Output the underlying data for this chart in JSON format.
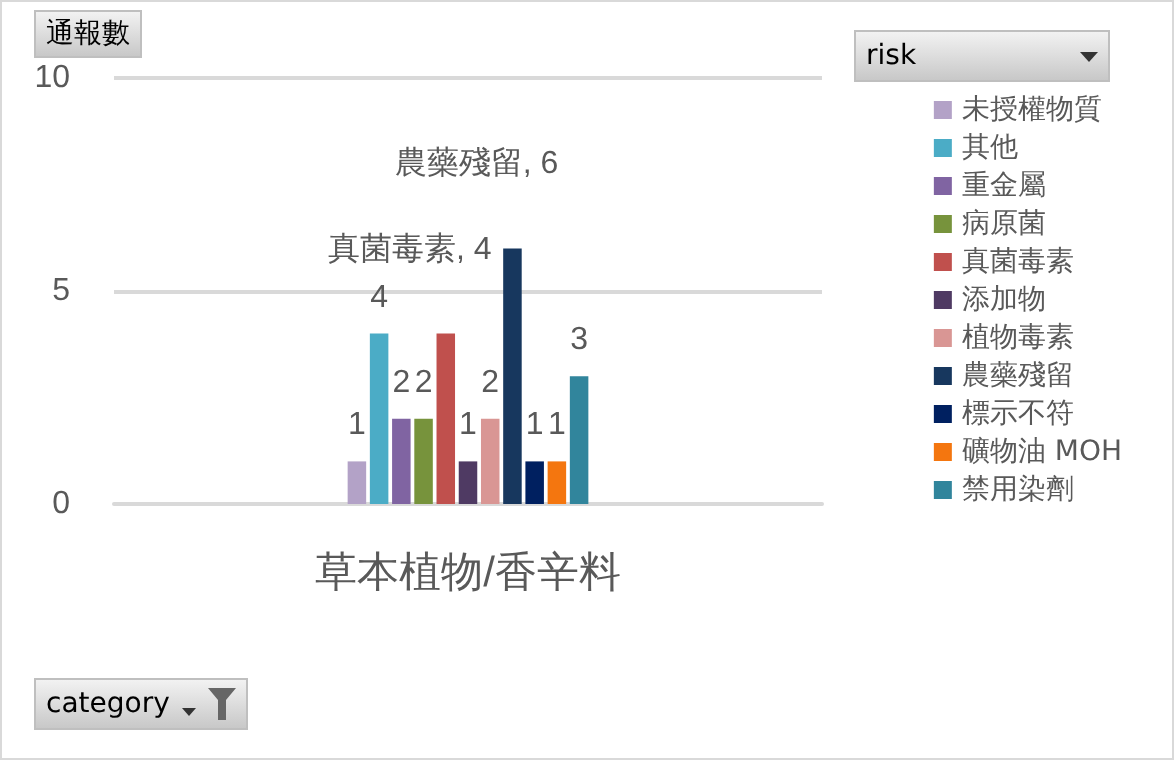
{
  "chart_data": {
    "type": "bar",
    "categories": [
      "草本植物/香辛料"
    ],
    "ylabel": "通報數",
    "legend_title": "risk",
    "xlabel": "category",
    "ylim": [
      0,
      10
    ],
    "yticks": [
      0,
      5,
      10
    ],
    "grid": "y",
    "legend": "right",
    "series": [
      {
        "name": "未授權物質",
        "color": "#b3a2c7",
        "values": [
          1
        ],
        "value_labels": [
          "1"
        ]
      },
      {
        "name": "其他",
        "color": "#4bacc6",
        "values": [
          4
        ],
        "value_labels": [
          "4"
        ]
      },
      {
        "name": "重金屬",
        "color": "#8064a2",
        "values": [
          2
        ],
        "value_labels": [
          "2"
        ]
      },
      {
        "name": "病原菌",
        "color": "#77933c",
        "values": [
          2
        ],
        "value_labels": [
          "2"
        ]
      },
      {
        "name": "真菌毒素",
        "color": "#c0504d",
        "values": [
          4
        ],
        "value_labels": [
          "真菌毒素, 4"
        ]
      },
      {
        "name": "添加物",
        "color": "#4f3a63",
        "values": [
          1
        ],
        "value_labels": [
          "1"
        ]
      },
      {
        "name": "植物毒素",
        "color": "#d99694",
        "values": [
          2
        ],
        "value_labels": [
          "2"
        ]
      },
      {
        "name": "農藥殘留",
        "color": "#17375e",
        "values": [
          6
        ],
        "value_labels": [
          "農藥殘留, 6"
        ]
      },
      {
        "name": "標示不符",
        "color": "#002060",
        "values": [
          1
        ],
        "value_labels": [
          "1"
        ]
      },
      {
        "name": "礦物油 MOH",
        "color": "#f4760f",
        "values": [
          1
        ],
        "value_labels": [
          "1"
        ]
      },
      {
        "name": "禁用染劑",
        "color": "#31859c",
        "values": [
          3
        ],
        "value_labels": [
          "3"
        ]
      }
    ]
  }
}
